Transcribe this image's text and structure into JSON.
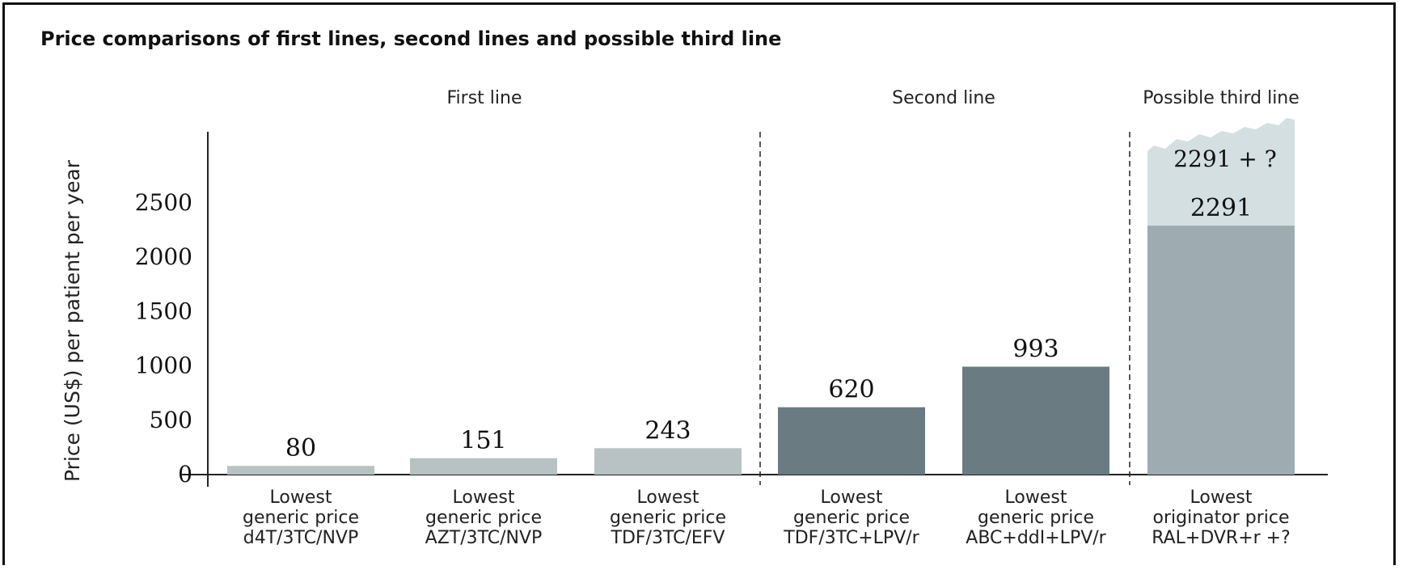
{
  "chart_data": {
    "type": "bar",
    "title": "Price comparisons of first lines, second lines and possible third line",
    "ylabel": "Price (US$) per patient per year",
    "xlabel": "",
    "ylim": [
      0,
      3000
    ],
    "yticks": [
      "0",
      "500",
      "1000",
      "1500",
      "2000",
      "2500"
    ],
    "grid": false,
    "groups": [
      {
        "label": "First line",
        "categories": [
          0,
          1,
          2
        ]
      },
      {
        "label": "Second line",
        "categories": [
          3,
          4
        ]
      },
      {
        "label": "Possible third line",
        "categories": [
          5
        ]
      }
    ],
    "categories": [
      [
        "Lowest",
        "generic price",
        "d4T/3TC/NVP"
      ],
      [
        "Lowest",
        "generic price",
        "AZT/3TC/NVP"
      ],
      [
        "Lowest",
        "generic price",
        "TDF/3TC/EFV"
      ],
      [
        "Lowest",
        "generic price",
        "TDF/3TC+LPV/r"
      ],
      [
        "Lowest",
        "generic price",
        "ABC+ddI+LPV/r"
      ],
      [
        "Lowest",
        "originator price",
        "RAL+DVR+r +?"
      ]
    ],
    "values": [
      80,
      151,
      243,
      620,
      993,
      2291
    ],
    "data_labels": [
      "80",
      "151",
      "243",
      "620",
      "993",
      "2291"
    ],
    "extension": {
      "category": 5,
      "label": "2291 + ?",
      "open_ended": true
    },
    "colors": {
      "first_line": "#b8c2c5",
      "second_line": "#6a7b82",
      "third_line": "#9eabb0",
      "third_line_extension": "#d4dfe1",
      "axis": "#222222"
    }
  }
}
